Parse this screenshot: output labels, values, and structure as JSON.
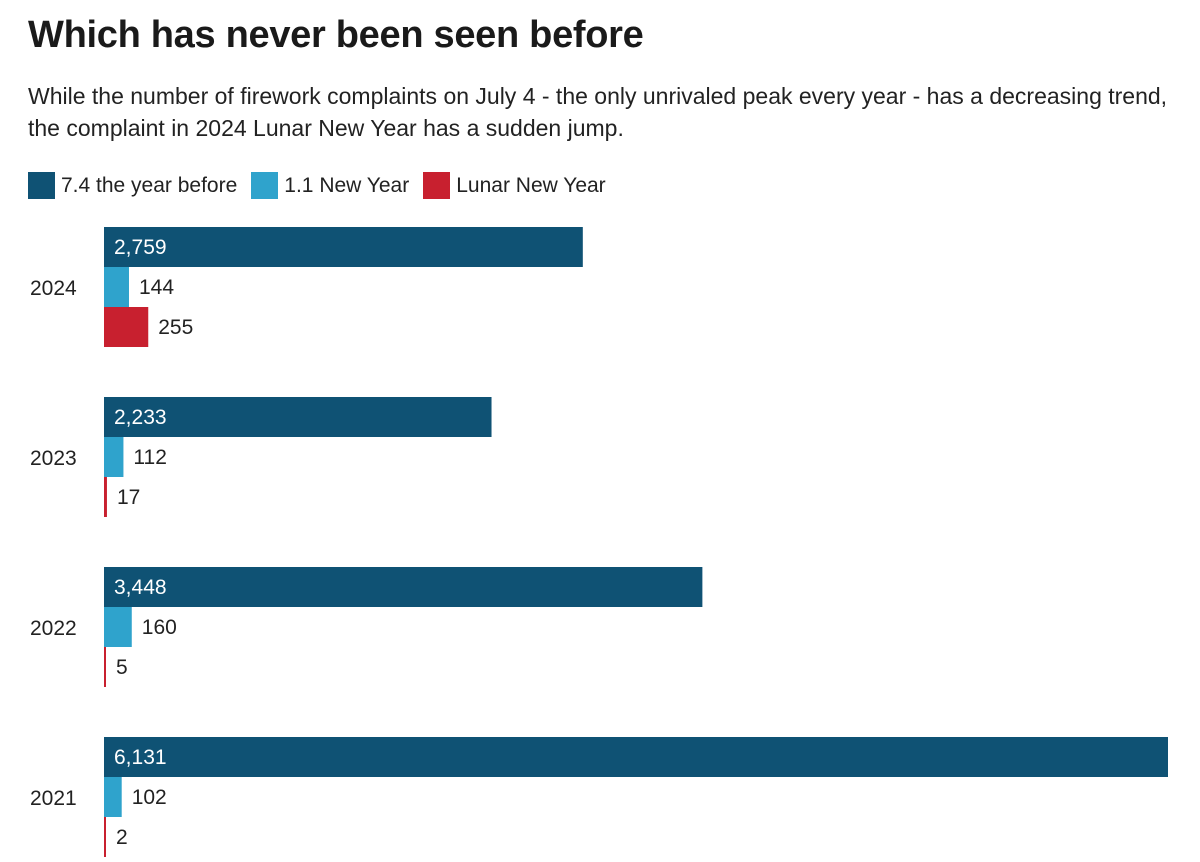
{
  "title": "Which has never been seen before",
  "subtitle": "While the number of firework complaints on July 4 - the only unrivaled peak every year - has a decreasing trend, the complaint in 2024 Lunar New Year has a sudden jump.",
  "colors": {
    "july4": "#0f5274",
    "new_year": "#2fa3cc",
    "lunar": "#c8202f",
    "text": "#222222",
    "inside_text": "#ffffff"
  },
  "chart_data": {
    "type": "bar",
    "orientation": "horizontal",
    "title": "Which has never been seen before",
    "subtitle": "While the number of firework complaints on July 4 - the only unrivaled peak every year - has a decreasing trend, the complaint in 2024 Lunar New Year has a sudden jump.",
    "categories": [
      "2024",
      "2023",
      "2022",
      "2021"
    ],
    "series": [
      {
        "name": "7.4 the year before",
        "values": [
          2759,
          2233,
          3448,
          6131
        ],
        "value_labels": [
          "2,759",
          "2,233",
          "3,448",
          "6,131"
        ]
      },
      {
        "name": "1.1 New Year",
        "values": [
          144,
          112,
          160,
          102
        ],
        "value_labels": [
          "144",
          "112",
          "160",
          "102"
        ]
      },
      {
        "name": "Lunar New Year",
        "values": [
          255,
          17,
          5,
          2
        ],
        "value_labels": [
          "255",
          "17",
          "5",
          "2"
        ]
      }
    ],
    "xlim": [
      0,
      6131
    ],
    "grid": false,
    "legend_position": "top-left",
    "data_labels": true
  }
}
